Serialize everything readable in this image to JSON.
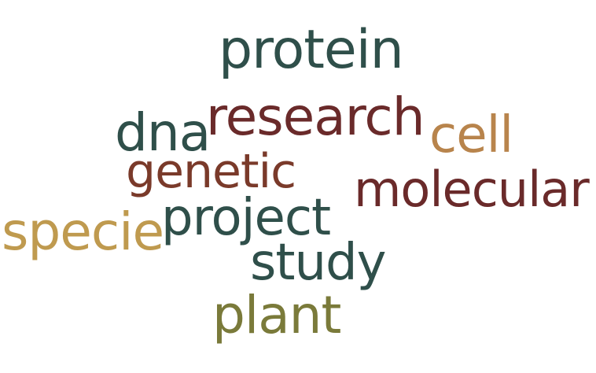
{
  "words": {
    "protein": {
      "text": "protein",
      "color": "#2f4f4a"
    },
    "research": {
      "text": "research",
      "color": "#6a2a2a"
    },
    "dna": {
      "text": "dna",
      "color": "#2f4f4a"
    },
    "cell": {
      "text": "cell",
      "color": "#b8844c"
    },
    "genetic": {
      "text": "genetic",
      "color": "#7a3a2a"
    },
    "molecular": {
      "text": "molecular",
      "color": "#6a2a2a"
    },
    "project": {
      "text": "project",
      "color": "#2f4f4a"
    },
    "specie": {
      "text": "specie",
      "color": "#bf9a4f"
    },
    "study": {
      "text": "study",
      "color": "#2f4f4a"
    },
    "plant": {
      "text": "plant",
      "color": "#7a7a3a"
    }
  }
}
